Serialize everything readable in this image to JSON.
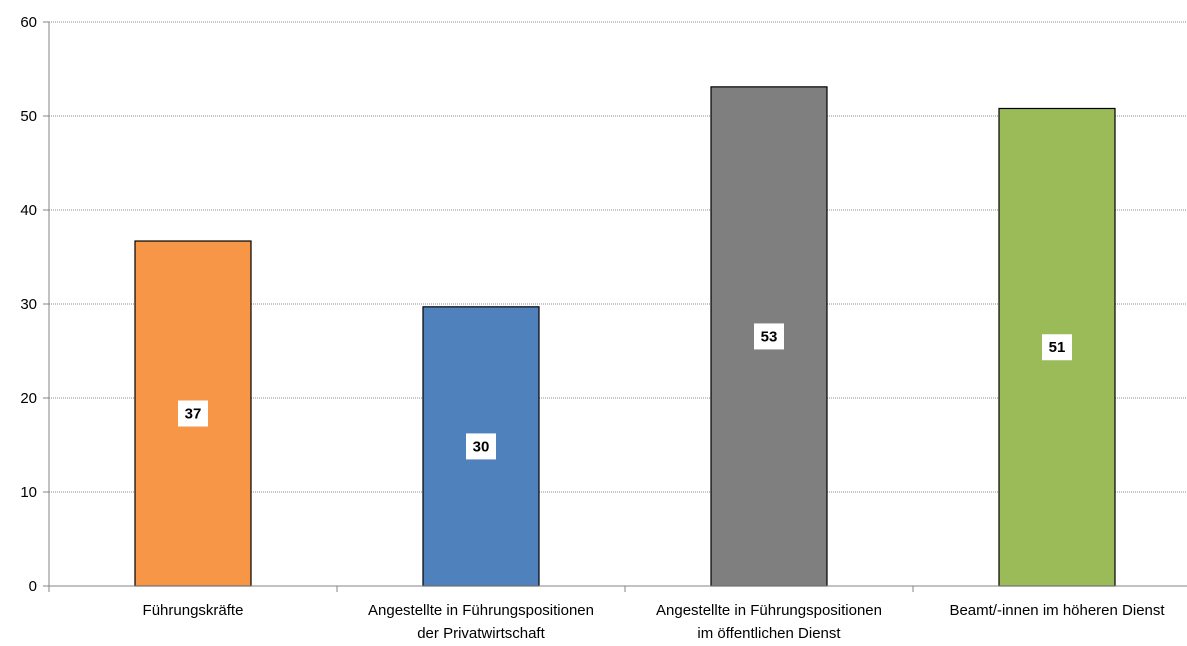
{
  "chart_data": {
    "type": "bar",
    "title": "",
    "xlabel": "",
    "ylabel": "",
    "ylim": [
      0,
      60
    ],
    "yticks": [
      0,
      10,
      20,
      30,
      40,
      50,
      60
    ],
    "grid": true,
    "legend": "none",
    "categories": [
      [
        "Führungskräfte"
      ],
      [
        "Angestellte in Führungspositionen",
        "der Privatwirtschaft"
      ],
      [
        "Angestellte in Führungspositionen",
        "im öffentlichen Dienst"
      ],
      [
        "Beamt/-innen im höheren Dienst"
      ]
    ],
    "values": [
      36.7,
      29.7,
      53.1,
      50.8
    ],
    "value_labels": [
      "37",
      "30",
      "53",
      "51"
    ],
    "colors": [
      "#F79646",
      "#4F81BD",
      "#7F7F7F",
      "#9BBB59"
    ]
  }
}
